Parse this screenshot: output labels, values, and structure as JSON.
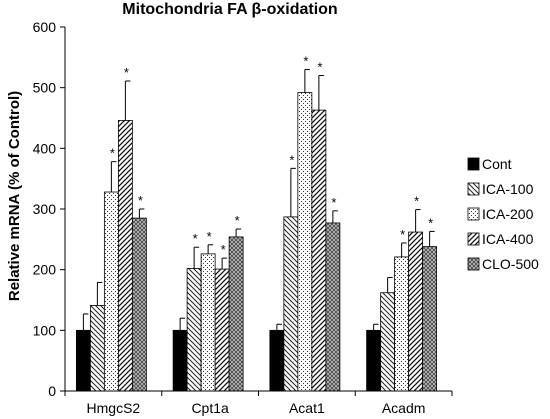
{
  "chart_data": {
    "type": "bar",
    "title": "Mitochondria  FA β-oxidation",
    "ylabel": "Relative mRNA (% of Control)",
    "xlabel": "",
    "ylim": [
      0,
      600
    ],
    "yticks": [
      0,
      100,
      200,
      300,
      400,
      500,
      600
    ],
    "categories": [
      "HmgcS2",
      "Cpt1a",
      "Acat1",
      "Acadm"
    ],
    "legend_position": "right",
    "series": [
      {
        "name": "Cont",
        "pattern": "solid",
        "values": [
          100,
          100,
          100,
          100
        ],
        "errors": [
          27,
          20,
          10,
          10
        ],
        "significant": [
          false,
          false,
          false,
          false
        ]
      },
      {
        "name": "ICA-100",
        "pattern": "back-hatch",
        "values": [
          141,
          202,
          287,
          162
        ],
        "errors": [
          38,
          35,
          80,
          25
        ],
        "significant": [
          false,
          true,
          true,
          false
        ]
      },
      {
        "name": "ICA-200",
        "pattern": "dots",
        "values": [
          328,
          226,
          492,
          221
        ],
        "errors": [
          50,
          15,
          38,
          23
        ],
        "significant": [
          true,
          true,
          true,
          true
        ]
      },
      {
        "name": "ICA-400",
        "pattern": "hatch",
        "values": [
          446,
          201,
          463,
          262
        ],
        "errors": [
          65,
          18,
          57,
          37
        ],
        "significant": [
          true,
          true,
          true,
          true
        ]
      },
      {
        "name": "CLO-500",
        "pattern": "crosshatch",
        "values": [
          285,
          254,
          277,
          238
        ],
        "errors": [
          15,
          13,
          20,
          25
        ],
        "significant": [
          true,
          true,
          true,
          true
        ]
      }
    ],
    "significance_marker": "*"
  }
}
